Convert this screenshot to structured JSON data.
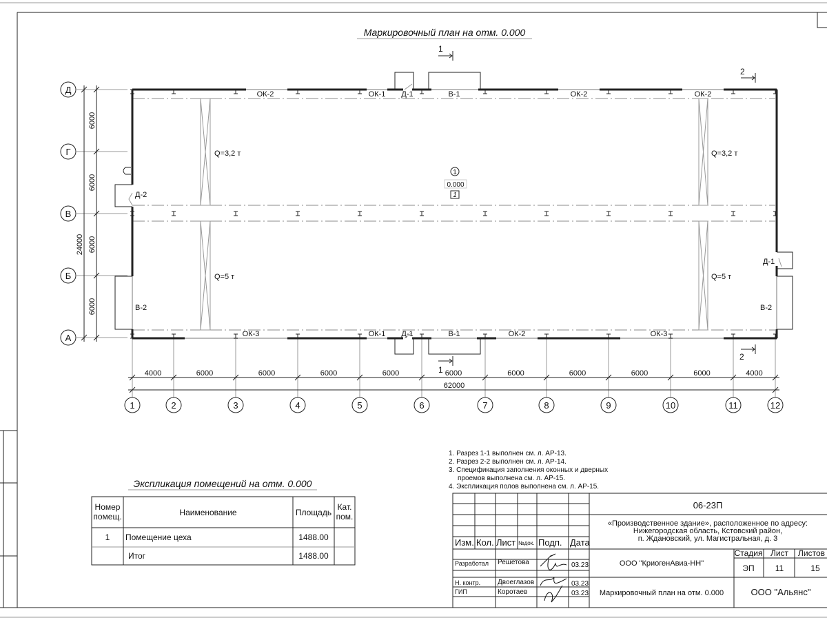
{
  "drawing": {
    "title": "Маркировочный план на отм. 0.000",
    "room": {
      "number": "1",
      "elevation": "0.000",
      "floor_type": "1"
    },
    "crane_labels": [
      "Q=3,2 т",
      "Q=5 т",
      "Q=3,2 т",
      "Q=5 т"
    ],
    "top_openings": [
      "ОК-2",
      "ОК-1",
      "Д-1",
      "В-1",
      "ОК-2",
      "ОК-2"
    ],
    "bottom_openings": [
      "ОК-3",
      "ОК-1",
      "Д-1",
      "В-1",
      "ОК-2",
      "ОК-3"
    ],
    "side_openings": {
      "left_door": "Д-2",
      "left_gate": "В-2",
      "right_door": "Д-1",
      "right_gate": "В-2"
    },
    "section_marks": [
      "1",
      "1",
      "2",
      "2"
    ]
  },
  "axes": {
    "columns": [
      "1",
      "2",
      "3",
      "4",
      "5",
      "6",
      "7",
      "8",
      "9",
      "10",
      "11",
      "12"
    ],
    "rows": [
      "Д",
      "Г",
      "В",
      "Б",
      "А"
    ],
    "column_spacings": [
      "4000",
      "6000",
      "6000",
      "6000",
      "6000",
      "6000",
      "6000",
      "6000",
      "6000",
      "6000",
      "4000"
    ],
    "column_total": "62000",
    "row_spacings": [
      "6000",
      "6000",
      "6000",
      "6000"
    ],
    "row_total": "24000"
  },
  "notes": [
    "1. Разрез 1-1 выполнен см. л. АР-13.",
    "2. Разрез 2-2 выполнен см. л. АР-14.",
    "3. Спецификация заполнения оконных и дверных",
    "проемов выполнена см. л. АР-15.",
    "4. Экспликация полов выполнена см. л. АР-15."
  ],
  "explication": {
    "title": "Экспликация помещений на отм. 0.000",
    "headers": [
      "Номер",
      "помещ.",
      "Наименование",
      "Площадь",
      "Кат.",
      "пом."
    ],
    "rows": [
      {
        "number": "1",
        "name": "Помещение цеха",
        "area": "1488.00",
        "category": ""
      },
      {
        "number": "",
        "name": "Итог",
        "area": "1488.00",
        "category": ""
      }
    ]
  },
  "title_block": {
    "code": "06-23П",
    "address": [
      "«Производственное здание», расположенное по адресу:",
      "Нижегородская область, Кстовский район,",
      "п. Ждановский, ул. Магистральная, д. 3"
    ],
    "headers": [
      "Изм.",
      "Кол.",
      "Лист",
      "№док.",
      "Подп.",
      "Дата"
    ],
    "people": [
      {
        "role": "Разработал",
        "name": "Решетова",
        "date": "03.23"
      },
      {
        "role": "Н. контр.",
        "name": "Двоеглазов",
        "date": "03.23"
      },
      {
        "role": "ГИП",
        "name": "Коротаев",
        "date": "03.23"
      }
    ],
    "customer": "ООО \"КриогенАвиа-НН\"",
    "stage_label": "Стадия",
    "sheet_label": "Лист",
    "sheets_label": "Листов",
    "stage": "ЭП",
    "sheet": "11",
    "sheets": "15",
    "sheet_title": "Маркировочный план на отм. 0.000",
    "organization": "ООО \"Альянс\""
  }
}
